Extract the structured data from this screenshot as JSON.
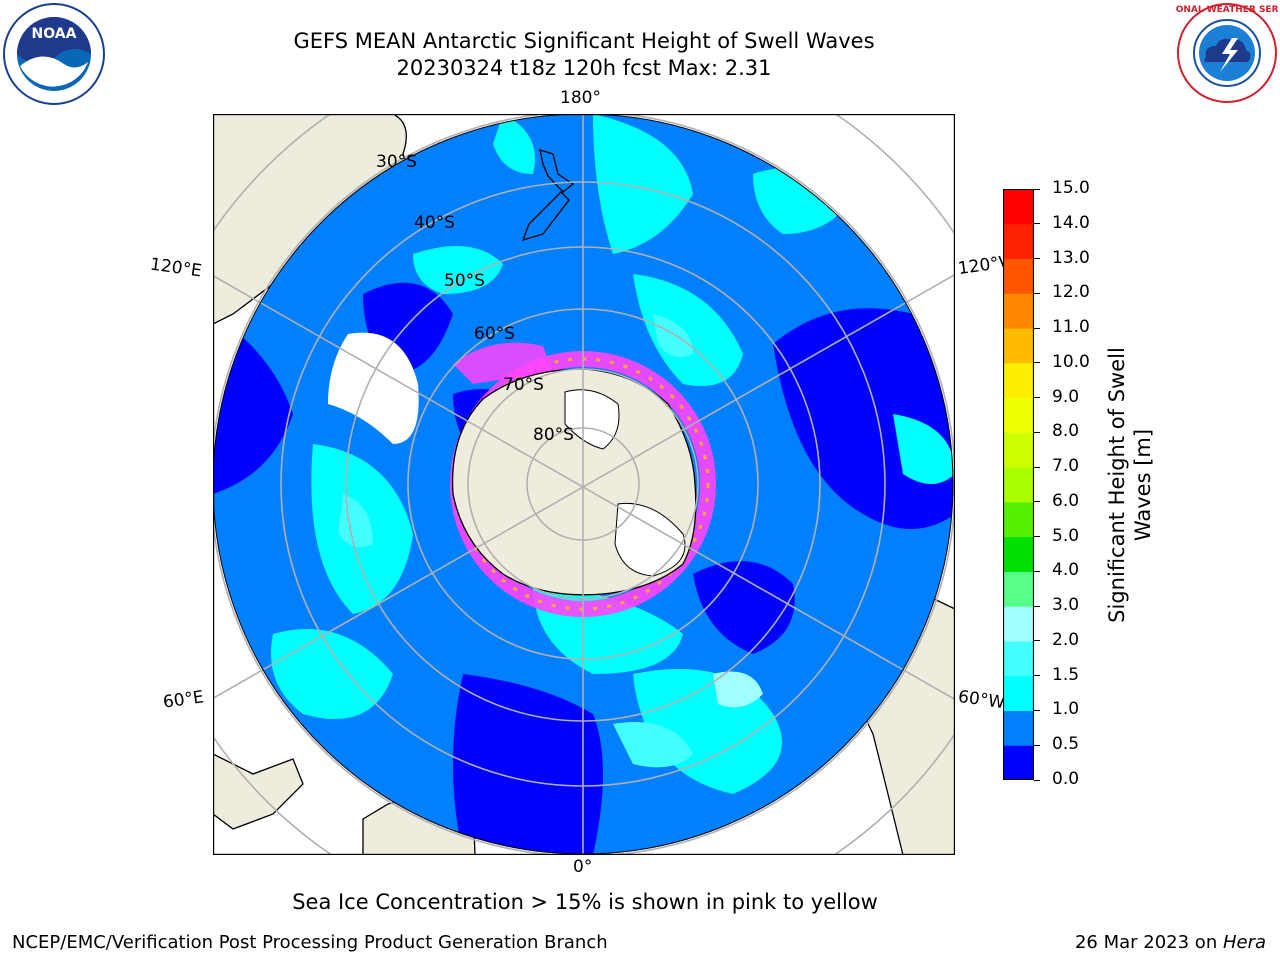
{
  "header": {
    "title_line1": "GEFS MEAN Antarctic Significant Height of Swell Waves",
    "title_line2": "20230324 t18z 120h fcst   Max: 2.31"
  },
  "logos": {
    "left": {
      "name": "noaa-logo",
      "text": "NOAA"
    },
    "right": {
      "name": "nws-logo",
      "text": "NATIONAL WEATHER SERVICE"
    }
  },
  "map": {
    "projection": "south-polar-stereographic",
    "longitude_labels": {
      "top": "180°",
      "bottom": "0°",
      "upper_left": "120°E",
      "upper_right": "120°W",
      "lower_left": "60°E",
      "lower_right": "60°W"
    },
    "latitude_labels": [
      "30°S",
      "40°S",
      "50°S",
      "60°S",
      "70°S",
      "80°S"
    ],
    "colors": {
      "land": "#eeecdc",
      "ice_shelf": "#ffffff",
      "sea_ice": "#ff44ff",
      "grid": "#b0b0b0"
    }
  },
  "colorbar": {
    "label_line1": "Significant Height of Swell",
    "label_line2": "Waves [m]",
    "ticks": [
      "0.0",
      "0.5",
      "1.0",
      "1.5",
      "2.0",
      "3.0",
      "4.0",
      "5.0",
      "6.0",
      "7.0",
      "8.0",
      "9.0",
      "10.0",
      "11.0",
      "12.0",
      "13.0",
      "14.0",
      "15.0"
    ],
    "colors": [
      "#0000ff",
      "#0080ff",
      "#00ffff",
      "#44ffff",
      "#a0ffff",
      "#55ff88",
      "#00e000",
      "#55f000",
      "#aaff00",
      "#ccff00",
      "#eeff00",
      "#ffee00",
      "#ffbb00",
      "#ff8800",
      "#ff5500",
      "#ff2200",
      "#ff0000"
    ]
  },
  "note": "Sea Ice Concentration > 15% is shown in pink to yellow",
  "footer": {
    "left": "NCEP/EMC/Verification Post Processing Product Generation Branch",
    "right_date": "26 Mar 2023 on ",
    "right_host": "Hera"
  }
}
